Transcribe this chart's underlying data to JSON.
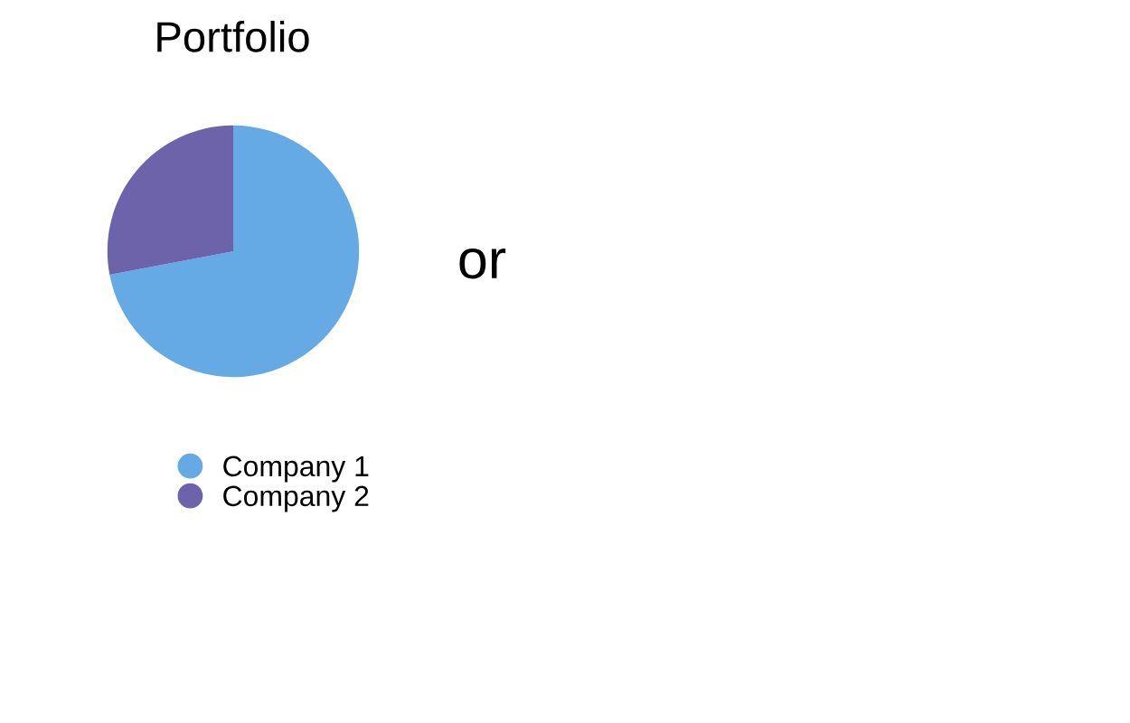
{
  "chart_data": {
    "type": "pie",
    "title": "Portfolio",
    "categories": [
      "Company 1",
      "Company 2"
    ],
    "values": [
      72,
      28
    ],
    "colors": [
      "#65a9e5",
      "#6c63ab"
    ],
    "legend": "bottom",
    "annotations": [
      "or"
    ]
  }
}
